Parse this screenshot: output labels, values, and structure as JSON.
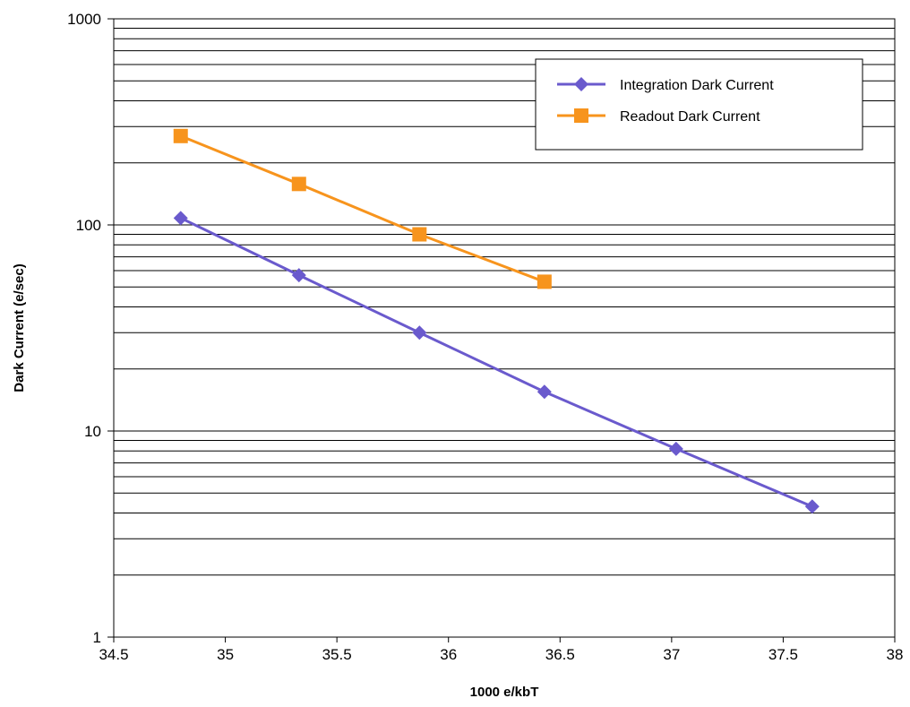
{
  "chart_data": {
    "type": "line",
    "title": "",
    "xlabel": "1000 e/kbT",
    "ylabel": "Dark Current (e/sec)",
    "x_scale": "linear",
    "y_scale": "log",
    "xlim": [
      34.5,
      38
    ],
    "ylim": [
      1,
      1000
    ],
    "x_ticks": [
      "34.5",
      "35",
      "35.5",
      "36",
      "36.5",
      "37",
      "37.5",
      "38"
    ],
    "y_ticks": [
      "1",
      "10",
      "100",
      "1000"
    ],
    "grid": "horizontal major and minor",
    "legend_position": "top-right",
    "series": [
      {
        "name": "Integration Dark Current",
        "color": "#6a5acd",
        "marker": "diamond",
        "x": [
          34.8,
          35.33,
          35.87,
          36.43,
          37.02,
          37.63
        ],
        "y": [
          108,
          57,
          30,
          15.5,
          8.2,
          4.3
        ]
      },
      {
        "name": "Readout Dark Current",
        "color": "#f7941d",
        "marker": "square",
        "x": [
          34.8,
          35.33,
          35.87,
          36.43
        ],
        "y": [
          270,
          158,
          90,
          53
        ]
      }
    ]
  }
}
